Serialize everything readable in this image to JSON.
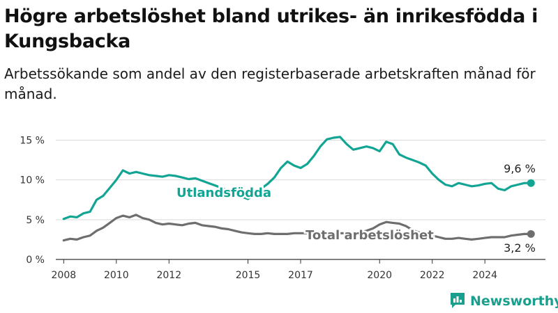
{
  "title": "Högre arbetslöshet bland utrikes- än inrikesfödda i Kungsbacka",
  "subtitle": "Arbetssökande som andel av den registerbaserade arbetskraften månad för månad.",
  "brand": {
    "name": "Newsworthy",
    "icon": "bar-chart-icon"
  },
  "colors": {
    "utlandsfodda": "#12a594",
    "total": "#6e6e6e",
    "grid": "#d9d9d9",
    "axis": "#333333",
    "brand": "#1a9e8e"
  },
  "chart_data": {
    "type": "line",
    "title": "Högre arbetslöshet bland utrikes- än inrikesfödda i Kungsbacka",
    "subtitle": "Arbetssökande som andel av den registerbaserade arbetskraften månad för månad.",
    "xlabel": "",
    "ylabel": "",
    "xlim": [
      2007.7,
      2026.3
    ],
    "ylim": [
      0,
      16
    ],
    "grid": "y",
    "x_ticks": [
      2008,
      2010,
      2012,
      2015,
      2017,
      2020,
      2022,
      2024
    ],
    "y_ticks": [
      {
        "value": 0,
        "label": "0 %"
      },
      {
        "value": 5,
        "label": "5 %"
      },
      {
        "value": 10,
        "label": "10 %"
      },
      {
        "value": 15,
        "label": "15 %"
      }
    ],
    "series": [
      {
        "name": "Utlandsfödda",
        "color": "#12a594",
        "end_label": "9,6 %",
        "x": [
          2008.0,
          2008.25,
          2008.5,
          2008.75,
          2009.0,
          2009.25,
          2009.5,
          2009.75,
          2010.0,
          2010.25,
          2010.5,
          2010.75,
          2011.0,
          2011.25,
          2011.5,
          2011.75,
          2012.0,
          2012.25,
          2012.5,
          2012.75,
          2013.0,
          2013.25,
          2013.5,
          2013.75,
          2014.0,
          2014.25,
          2014.5,
          2014.75,
          2015.0,
          2015.25,
          2015.5,
          2015.75,
          2016.0,
          2016.25,
          2016.5,
          2016.75,
          2017.0,
          2017.25,
          2017.5,
          2017.75,
          2018.0,
          2018.25,
          2018.5,
          2018.75,
          2019.0,
          2019.25,
          2019.5,
          2019.75,
          2020.0,
          2020.25,
          2020.5,
          2020.75,
          2021.0,
          2021.25,
          2021.5,
          2021.75,
          2022.0,
          2022.25,
          2022.5,
          2022.75,
          2023.0,
          2023.25,
          2023.5,
          2023.75,
          2024.0,
          2024.25,
          2024.5,
          2024.75,
          2025.0,
          2025.25,
          2025.5,
          2025.75
        ],
        "values": [
          5.1,
          5.4,
          5.3,
          5.8,
          6.0,
          7.5,
          8.0,
          9.0,
          10.0,
          11.2,
          10.8,
          11.0,
          10.8,
          10.6,
          10.5,
          10.4,
          10.6,
          10.5,
          10.3,
          10.1,
          10.2,
          9.9,
          9.6,
          9.3,
          9.0,
          8.6,
          8.2,
          7.9,
          7.6,
          8.2,
          8.9,
          9.5,
          10.3,
          11.5,
          12.3,
          11.8,
          11.5,
          12.0,
          13.0,
          14.2,
          15.1,
          15.3,
          15.4,
          14.5,
          13.8,
          14.0,
          14.2,
          14.0,
          13.6,
          14.8,
          14.5,
          13.2,
          12.8,
          12.5,
          12.2,
          11.8,
          10.8,
          10.0,
          9.4,
          9.2,
          9.6,
          9.4,
          9.2,
          9.3,
          9.5,
          9.6,
          8.9,
          8.7,
          9.2,
          9.4,
          9.6,
          9.6
        ]
      },
      {
        "name": "Total arbetslöshet",
        "color": "#6e6e6e",
        "end_label": "3,2 %",
        "x": [
          2008.0,
          2008.25,
          2008.5,
          2008.75,
          2009.0,
          2009.25,
          2009.5,
          2009.75,
          2010.0,
          2010.25,
          2010.5,
          2010.75,
          2011.0,
          2011.25,
          2011.5,
          2011.75,
          2012.0,
          2012.25,
          2012.5,
          2012.75,
          2013.0,
          2013.25,
          2013.5,
          2013.75,
          2014.0,
          2014.25,
          2014.5,
          2014.75,
          2015.0,
          2015.25,
          2015.5,
          2015.75,
          2016.0,
          2016.25,
          2016.5,
          2016.75,
          2017.0,
          2017.25,
          2017.5,
          2017.75,
          2018.0,
          2018.25,
          2018.5,
          2018.75,
          2019.0,
          2019.25,
          2019.5,
          2019.75,
          2020.0,
          2020.25,
          2020.5,
          2020.75,
          2021.0,
          2021.25,
          2021.5,
          2021.75,
          2022.0,
          2022.25,
          2022.5,
          2022.75,
          2023.0,
          2023.25,
          2023.5,
          2023.75,
          2024.0,
          2024.25,
          2024.5,
          2024.75,
          2025.0,
          2025.25,
          2025.5,
          2025.75
        ],
        "values": [
          2.4,
          2.6,
          2.5,
          2.8,
          3.0,
          3.6,
          4.0,
          4.6,
          5.2,
          5.5,
          5.3,
          5.6,
          5.2,
          5.0,
          4.6,
          4.4,
          4.5,
          4.4,
          4.3,
          4.5,
          4.6,
          4.3,
          4.2,
          4.1,
          3.9,
          3.8,
          3.6,
          3.4,
          3.3,
          3.2,
          3.2,
          3.3,
          3.2,
          3.2,
          3.2,
          3.3,
          3.3,
          3.3,
          3.3,
          3.3,
          3.3,
          3.3,
          3.3,
          3.3,
          3.3,
          3.4,
          3.6,
          3.9,
          4.4,
          4.7,
          4.6,
          4.5,
          4.2,
          3.7,
          3.4,
          3.2,
          3.0,
          2.8,
          2.6,
          2.6,
          2.7,
          2.6,
          2.5,
          2.6,
          2.7,
          2.8,
          2.8,
          2.8,
          3.0,
          3.1,
          3.2,
          3.2
        ]
      }
    ]
  }
}
